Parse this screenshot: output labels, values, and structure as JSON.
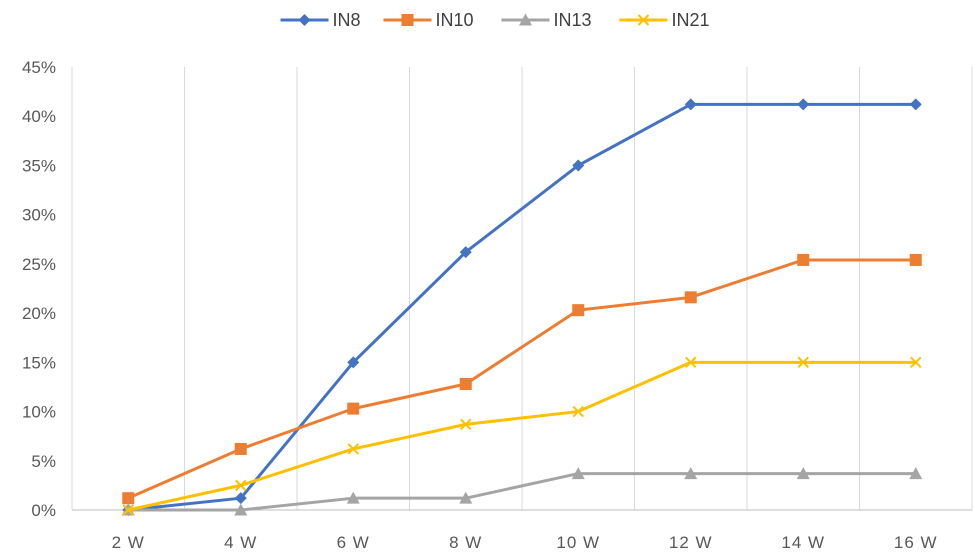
{
  "chart_data": {
    "type": "line",
    "title": "",
    "xlabel": "",
    "ylabel": "",
    "categories": [
      "2 W",
      "4 W",
      "6 W",
      "8 W",
      "10 W",
      "12 W",
      "14 W",
      "16 W"
    ],
    "ylim": [
      0,
      45
    ],
    "yticks": [
      "0%",
      "5%",
      "10%",
      "15%",
      "20%",
      "25%",
      "30%",
      "35%",
      "40%",
      "45%"
    ],
    "grid": "vertical",
    "legend_position": "top",
    "series": [
      {
        "name": "IN8",
        "color": "#4472c4",
        "marker": "diamond",
        "values": [
          0,
          1.2,
          15,
          26.2,
          35,
          41.2,
          41.2,
          41.2
        ]
      },
      {
        "name": "IN10",
        "color": "#ed7d31",
        "marker": "square",
        "values": [
          1.2,
          6.2,
          10.3,
          12.8,
          20.3,
          21.6,
          25.4,
          25.4
        ]
      },
      {
        "name": "IN13",
        "color": "#a5a5a5",
        "marker": "triangle",
        "values": [
          0,
          0,
          1.2,
          1.2,
          3.7,
          3.7,
          3.7,
          3.7
        ]
      },
      {
        "name": "IN21",
        "color": "#ffc000",
        "marker": "x",
        "values": [
          0,
          2.5,
          6.2,
          8.7,
          10,
          15,
          15,
          15
        ]
      }
    ]
  }
}
